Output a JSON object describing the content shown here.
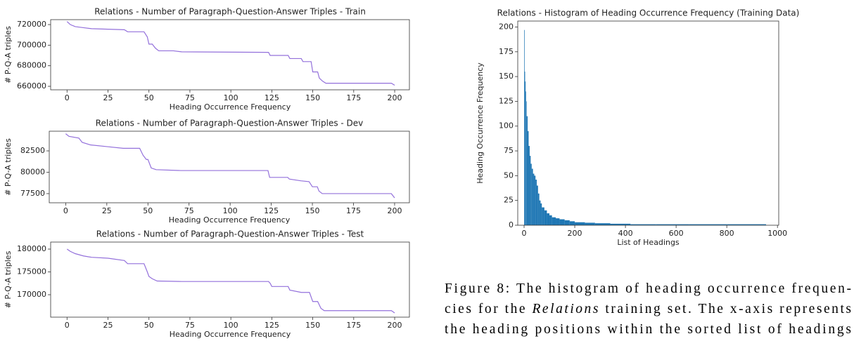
{
  "chart_data": [
    {
      "type": "line",
      "title": "Relations - Number of Paragraph-Question-Answer Triples - Train",
      "xlabel": "Heading Occurrence Frequency",
      "ylabel": "# P-Q-A triples",
      "color": "#9370db",
      "x": [
        0,
        2,
        5,
        10,
        15,
        35,
        37,
        47,
        49,
        50,
        52,
        54,
        56,
        65,
        70,
        123,
        124,
        135,
        136,
        143,
        144,
        149,
        150,
        153,
        154,
        156,
        158,
        198,
        200
      ],
      "values": [
        723000,
        720000,
        718000,
        717000,
        716000,
        715000,
        713000,
        713000,
        708000,
        701000,
        701000,
        697000,
        694500,
        694500,
        693500,
        693000,
        690000,
        690000,
        687000,
        687000,
        684000,
        684000,
        674000,
        674000,
        668000,
        665000,
        663000,
        663000,
        661000
      ],
      "xlim": [
        -10,
        209
      ],
      "ylim": [
        656600,
        724800
      ],
      "xticks": [
        0,
        25,
        50,
        75,
        100,
        125,
        150,
        175,
        200
      ],
      "yticks": [
        660000,
        680000,
        700000,
        720000
      ]
    },
    {
      "type": "line",
      "title": "Relations - Number of Paragraph-Question-Answer Triples - Dev",
      "xlabel": "Heading Occurrence Frequency",
      "ylabel": "# P-Q-A triples",
      "color": "#9370db",
      "x": [
        0,
        2,
        8,
        10,
        15,
        25,
        35,
        45,
        47,
        49,
        50,
        52,
        55,
        70,
        123,
        124,
        135,
        136,
        143,
        148,
        150,
        153,
        154,
        156,
        198,
        200
      ],
      "values": [
        84500,
        84200,
        84000,
        83500,
        83200,
        83000,
        82800,
        82800,
        82000,
        81500,
        81500,
        80500,
        80300,
        80200,
        80200,
        79400,
        79400,
        79200,
        79000,
        78900,
        78300,
        78300,
        77800,
        77500,
        77500,
        77000
      ],
      "xlim": [
        -10,
        209
      ],
      "ylim": [
        76430,
        84800
      ],
      "xticks": [
        0,
        25,
        50,
        75,
        100,
        125,
        150,
        175,
        200
      ],
      "yticks": [
        77500,
        80000,
        82500
      ]
    },
    {
      "type": "line",
      "title": "Relations - Number of Paragraph-Question-Answer Triples - Test",
      "xlabel": "Heading Occurrence Frequency",
      "ylabel": "# P-Q-A triples",
      "color": "#9370db",
      "x": [
        0,
        2,
        5,
        10,
        15,
        25,
        35,
        37,
        47,
        49,
        50,
        52,
        55,
        70,
        123,
        124,
        125,
        135,
        136,
        143,
        148,
        150,
        153,
        155,
        157,
        198,
        200
      ],
      "values": [
        180000,
        179500,
        179000,
        178500,
        178200,
        178000,
        177500,
        176800,
        176800,
        175000,
        174000,
        173500,
        173000,
        172900,
        172900,
        172500,
        171800,
        171800,
        171000,
        170500,
        170500,
        168500,
        168500,
        167000,
        166500,
        166500,
        166000
      ],
      "xlim": [
        -10,
        209
      ],
      "ylim": [
        165080,
        181540
      ],
      "xticks": [
        0,
        25,
        50,
        75,
        100,
        125,
        150,
        175,
        200
      ],
      "yticks": [
        170000,
        175000,
        180000
      ]
    },
    {
      "type": "histogram",
      "title": "Relations - Histogram of Heading Occurrence Frequency (Training Data)",
      "xlabel": "List of Headings",
      "ylabel": "Heading Occurrence Frequency",
      "color": "#1f77b4",
      "bins": [
        0,
        2,
        4,
        6,
        8,
        10,
        14,
        18,
        22,
        26,
        30,
        35,
        40,
        45,
        50,
        55,
        60,
        65,
        70,
        80,
        90,
        100,
        110,
        125,
        140,
        160,
        180,
        200,
        240,
        280,
        340,
        420,
        520,
        650,
        800,
        955
      ],
      "counts": [
        197,
        155,
        145,
        135,
        125,
        110,
        95,
        80,
        70,
        62,
        57,
        52,
        50,
        46,
        40,
        32,
        25,
        22,
        18,
        15,
        12,
        10,
        8,
        7,
        6,
        5,
        4,
        3,
        2.5,
        2,
        1.5,
        1,
        1,
        1,
        1
      ],
      "xlim": [
        -25,
        1005
      ],
      "ylim": [
        0,
        206
      ],
      "xticks": [
        0,
        200,
        400,
        600,
        800,
        1000
      ],
      "yticks": [
        0,
        25,
        50,
        75,
        100,
        125,
        150,
        175,
        200
      ]
    }
  ],
  "caption": {
    "lines": [
      [
        "Figure 8: The histogram of heading occurrence frequen-"
      ],
      [
        "cies for the ",
        "Relations",
        " training set. The x-axis represents"
      ],
      [
        "the heading positions within the sorted list of headings"
      ]
    ]
  }
}
